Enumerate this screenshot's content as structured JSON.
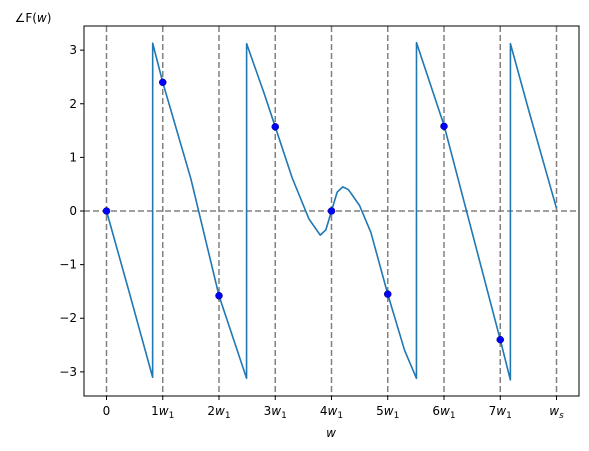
{
  "chart_data": {
    "type": "line",
    "title": "",
    "ylabel": "∠F(w)",
    "xlabel": "w",
    "x_tick_labels": [
      "0",
      "1w1",
      "2w1",
      "3w1",
      "4w1",
      "5w1",
      "6w1",
      "7w1",
      "ws"
    ],
    "x_tick_values": [
      0,
      1,
      2,
      3,
      4,
      5,
      6,
      7,
      8
    ],
    "y_tick_labels": [
      "−3",
      "−2",
      "−1",
      "0",
      "1",
      "2",
      "3"
    ],
    "y_tick_values": [
      -3,
      -2,
      -1,
      0,
      1,
      2,
      3
    ],
    "xlim": [
      -0.4,
      8.4
    ],
    "ylim": [
      -3.45,
      3.45
    ],
    "grid": "dashed vertical lines at each x tick and horizontal line at y=0",
    "series": [
      {
        "color": "#1f77b4",
        "x": [
          0,
          0.4,
          0.82,
          0.821,
          1.0,
          1.5,
          2.0,
          2.49,
          2.491,
          2.8,
          3.0,
          3.3,
          3.6,
          3.8,
          3.9,
          4.0,
          4.1,
          4.2,
          4.3,
          4.5,
          4.7,
          5.0,
          5.3,
          5.51,
          5.511,
          6.0,
          6.5,
          7.0,
          7.18,
          7.181,
          7.5,
          8.0
        ],
        "y": [
          0,
          -1.5,
          -3.1,
          3.13,
          2.4,
          0.6,
          -1.58,
          -3.12,
          3.12,
          2.2,
          1.57,
          0.62,
          -0.15,
          -0.45,
          -0.35,
          0.0,
          0.35,
          0.45,
          0.4,
          0.1,
          -0.4,
          -1.55,
          -2.6,
          -3.12,
          3.14,
          1.6,
          -0.4,
          -2.4,
          -3.15,
          3.12,
          1.9,
          0.05
        ]
      }
    ],
    "markers": {
      "color": "#0000ff",
      "x": [
        0,
        1,
        2,
        3,
        4,
        5,
        6,
        7
      ],
      "y": [
        0,
        2.4,
        -1.58,
        1.57,
        0,
        -1.55,
        1.58,
        -2.4
      ]
    }
  }
}
